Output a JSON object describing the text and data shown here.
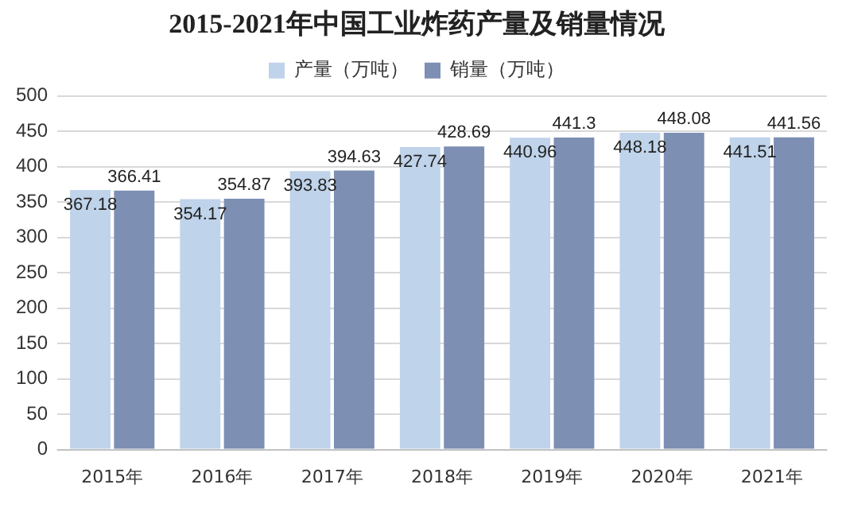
{
  "chart_data": {
    "type": "bar",
    "title": "2015-2021年中国工业炸药产量及销量情况",
    "categories": [
      "2015年",
      "2016年",
      "2017年",
      "2018年",
      "2019年",
      "2020年",
      "2021年"
    ],
    "series": [
      {
        "name": "产量（万吨）",
        "color": "#bfd3ea",
        "values": [
          367.18,
          354.17,
          393.83,
          427.74,
          440.96,
          448.18,
          441.51
        ]
      },
      {
        "name": "销量（万吨）",
        "color": "#7d8fb3",
        "values": [
          366.41,
          354.87,
          394.63,
          428.69,
          441.3,
          448.08,
          441.56
        ]
      }
    ],
    "ylim": [
      0,
      500
    ],
    "yticks": [
      0,
      50,
      100,
      150,
      200,
      250,
      300,
      350,
      400,
      450,
      500
    ],
    "grid": "y",
    "legend": "top",
    "data_labels": true
  }
}
